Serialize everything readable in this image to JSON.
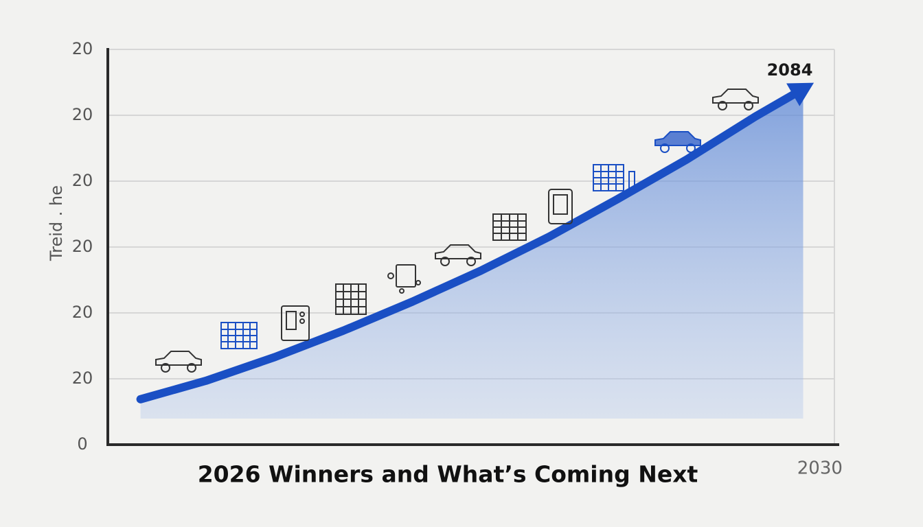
{
  "chart_data": {
    "type": "line",
    "title": "2026 Winners and What’s Coming Next",
    "y_label": "Treid . he",
    "annotation": "2084",
    "x": [
      0.45,
      1.35,
      2.3,
      3.24,
      4.19,
      5.13,
      6.08,
      7.02,
      7.97,
      8.91,
      9.57
    ],
    "series": [
      {
        "color": "#1a4fc4",
        "values": [
          0.69,
          0.97,
          1.33,
          1.73,
          2.17,
          2.64,
          3.16,
          3.73,
          4.33,
          4.98,
          5.4
        ]
      }
    ],
    "xlim": [
      0,
      10
    ],
    "xticks": [
      {
        "value": 9.8,
        "label": "2030"
      }
    ],
    "ylim": [
      0,
      6
    ],
    "yticks": [
      0,
      {
        "value": 1,
        "label": "20"
      },
      {
        "value": 2,
        "label": "20"
      },
      {
        "value": 3,
        "label": "20"
      },
      {
        "value": 4,
        "label": "20"
      },
      {
        "value": 5,
        "label": "20"
      },
      {
        "value": 6,
        "label": "20"
      }
    ],
    "grid": true
  }
}
